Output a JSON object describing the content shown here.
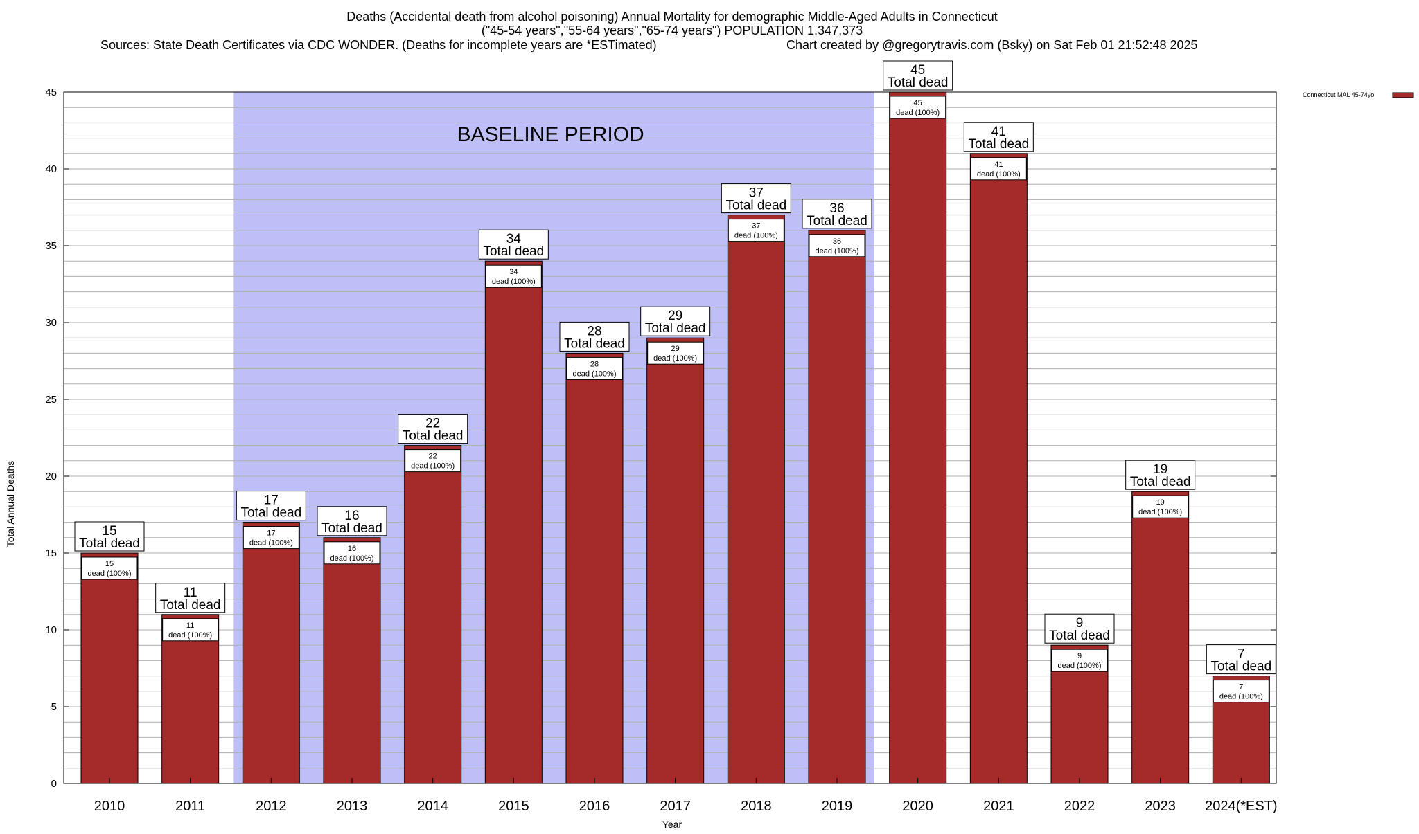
{
  "chart_data": {
    "type": "bar",
    "title_lines": [
      "Deaths (Accidental death from alcohol poisoning) Annual Mortality for demographic Middle-Aged Adults in Connecticut",
      "(\"45-54 years\",\"55-64 years\",\"65-74 years\") POPULATION 1,347,373"
    ],
    "sources": "Sources: State Death Certificates via CDC WONDER. (Deaths for incomplete years are *ESTimated)",
    "credit": "Chart created by @gregorytravis.com (Bsky) on Sat Feb 01 21:52:48 2025",
    "xlabel": "Year",
    "ylabel": "Total Annual Deaths",
    "ylim": [
      0,
      45
    ],
    "y_major_ticks": [
      0,
      5,
      10,
      15,
      20,
      25,
      30,
      35,
      40,
      45
    ],
    "y_minor_step": 1,
    "grid": true,
    "categories": [
      "2010",
      "2011",
      "2012",
      "2013",
      "2014",
      "2015",
      "2016",
      "2017",
      "2018",
      "2019",
      "2020",
      "2021",
      "2022",
      "2023",
      "2024(*EST)"
    ],
    "series": [
      {
        "name": "Connecticut MAL 45-74yo",
        "color": "#a52a2a",
        "values": [
          15,
          11,
          17,
          16,
          22,
          34,
          28,
          29,
          37,
          36,
          45,
          41,
          9,
          19,
          7
        ]
      }
    ],
    "total_label_suffix": "Total dead",
    "bar_label_suffix": "dead (100%)",
    "baseline": {
      "label": "BASELINE PERIOD",
      "start": "2012",
      "end": "2019",
      "color": "#bfbff8"
    },
    "legend_position": "top-right"
  }
}
